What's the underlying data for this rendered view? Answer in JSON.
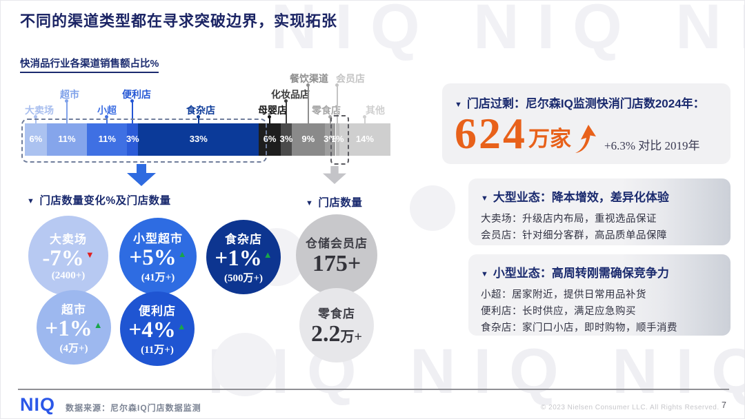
{
  "slide": {
    "title": "不同的渠道类型都在寻求突破边界，实现拓张",
    "watermark": "NIQ NIQ NIQ NIQ"
  },
  "icons": {
    "triangle_marker": "▼",
    "up_trend": "▲",
    "down_trend": "▼",
    "up_arrow": "curved-up-arrow",
    "down_flow_arrow": "block-down-arrow"
  },
  "colors": {
    "accent_orange": "#E8611A",
    "navy": "#1A2A6E",
    "trend_up_green": "#18A54A",
    "trend_down_red": "#E01F1F",
    "flow_arrow_blue": "#2F6BE0",
    "flow_arrow_gray": "#C4C4C8",
    "logo_blue": "#2B57E8"
  },
  "chart_data": [
    {
      "type": "bar",
      "stacked": true,
      "title": "快消品行业各渠道销售额占比%",
      "unit": "%",
      "categories": [
        "大卖场",
        "超市",
        "小超",
        "便利店",
        "食杂店",
        "母婴店",
        "化妆品店",
        "餐饮渠道",
        "零食店",
        "会员店",
        "其他"
      ],
      "values": [
        6,
        11,
        11,
        3,
        33,
        6,
        3,
        9,
        3,
        1,
        14
      ],
      "colors": [
        "#ABC2F0",
        "#85A5EB",
        "#3F70E3",
        "#2B5BD8",
        "#0B3A99",
        "#1E1E1E",
        "#4B4B4B",
        "#8A8A8A",
        "#9E9E9E",
        "#BDBDBD",
        "#CFCFCF"
      ],
      "label_colors": [
        "#A9BFEF",
        "#7FA1E9",
        "#3F70E3",
        "#2456D4",
        "#0B3A99",
        "#141414",
        "#3C3C3C",
        "#8E8E8E",
        "#A6A6A6",
        "#C4C4C4",
        "#D0D0D0"
      ],
      "highlight_dashed": [
        "大卖场–食杂店（蓝色段）",
        "会员店"
      ],
      "legend_position": "above-bar-labels",
      "grid": false
    },
    {
      "type": "bubble",
      "title": "门店数量变化%及门店数量",
      "items": [
        {
          "label": "大卖场",
          "change": "-7%",
          "change_pct": -7,
          "trend": "down",
          "count": "(2400+)"
        },
        {
          "label": "小型超市",
          "change": "+5%",
          "change_pct": 5,
          "trend": "up",
          "count": "(41万+)"
        },
        {
          "label": "食杂店",
          "change": "+1%",
          "change_pct": 1,
          "trend": "up",
          "count": "(500万+)"
        },
        {
          "label": "超市",
          "change": "+1%",
          "change_pct": 1,
          "trend": "up",
          "count": "(4万+)"
        },
        {
          "label": "便利店",
          "change": "+4%",
          "change_pct": 4,
          "trend": "up",
          "count": "(11万+)"
        }
      ]
    },
    {
      "type": "bubble",
      "title": "门店数量",
      "items": [
        {
          "label": "仓储会员店",
          "count": "175+",
          "count_main": "175+",
          "count_suffix": ""
        },
        {
          "label": "零食店",
          "count": "2.2万+",
          "count_main": "2.2",
          "count_suffix": "万+"
        }
      ]
    }
  ],
  "insight_panels": [
    {
      "heading": "门店过剩：尼尔森IQ监测快消门店数2024年：",
      "big_number": "624",
      "big_unit": "万家",
      "note": "+6.3% 对比 2019年"
    },
    {
      "heading": "大型业态：降本增效，差异化体验",
      "lines": [
        "大卖场：升级店内布局，重视选品保证",
        "会员店：针对细分客群，高品质单品保障"
      ]
    },
    {
      "heading": "小型业态：高周转刚需确保竞争力",
      "lines": [
        "小超：居家附近，提供日常用品补货",
        "便利店：长时供应，满足应急购买",
        "食杂店：家门口小店，即时购物，顺手消费"
      ]
    }
  ],
  "footer": {
    "logo": "NIQ",
    "source": "数据来源：尼尔森IQ门店数据监测",
    "copyright": "© 2023 Nielsen Consumer LLC. All Rights Reserved.",
    "page": "7"
  }
}
